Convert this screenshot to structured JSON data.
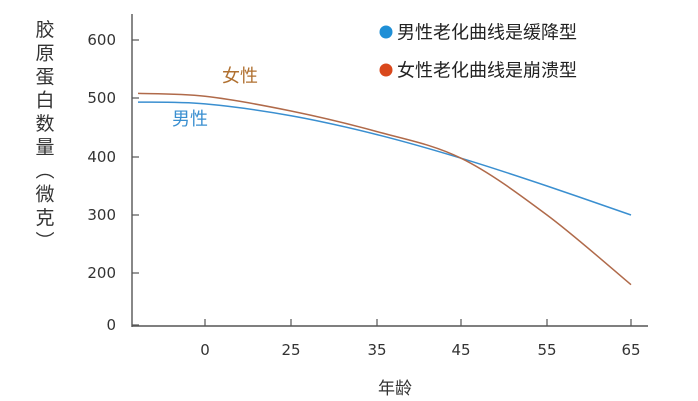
{
  "chart_data": {
    "type": "line",
    "xlabel": "年龄",
    "ylabel": "胶原蛋白数量（微克）",
    "x_ticks": [
      "0",
      "25",
      "35",
      "45",
      "55",
      "65"
    ],
    "y_ticks": [
      "0",
      "200",
      "300",
      "400",
      "500",
      "600"
    ],
    "ylim": [
      0,
      650
    ],
    "grid": false,
    "legend_position": "top-right",
    "legend": [
      {
        "text": "男性老化曲线是缓降型",
        "color": "#1f8fd6"
      },
      {
        "text": "女性老化曲线是崩溃型",
        "color": "#d9481c"
      }
    ],
    "series": [
      {
        "name": "男性",
        "color": "#3a8fd0",
        "label_color": "#3a8fd0",
        "points": [
          [
            -10,
            493
          ],
          [
            0,
            490
          ],
          [
            25,
            470
          ],
          [
            35,
            438
          ],
          [
            45,
            398
          ],
          [
            55,
            350
          ],
          [
            65,
            300
          ]
        ]
      },
      {
        "name": "女性",
        "color": "#b06a4a",
        "label_color": "#b07030",
        "points": [
          [
            -10,
            508
          ],
          [
            0,
            503
          ],
          [
            25,
            478
          ],
          [
            35,
            443
          ],
          [
            45,
            398
          ],
          [
            55,
            300
          ],
          [
            65,
            155
          ]
        ]
      }
    ]
  }
}
